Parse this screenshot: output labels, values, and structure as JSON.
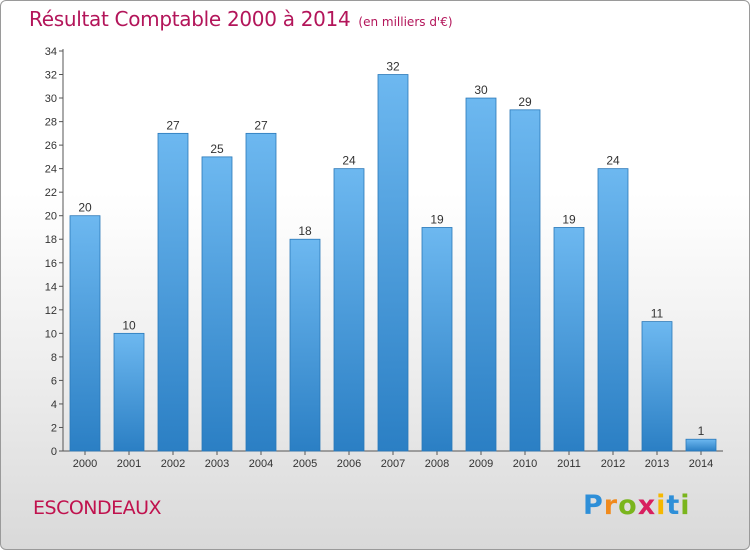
{
  "header": {
    "title": "Résultat Comptable 2000 à 2014",
    "subtitle": "(en milliers d'€)"
  },
  "footer": {
    "commune": "ESCONDEAUX",
    "logo_letters": [
      "P",
      "r",
      "o",
      "x",
      "i",
      "t",
      "i"
    ],
    "logo_colors": [
      "#2e8fd8",
      "#f08a1c",
      "#7ab51d",
      "#d81f5f",
      "#f6b800",
      "#2e8fd8",
      "#7ab51d"
    ]
  },
  "colors": {
    "bar_top": "#6db8f0",
    "bar_bottom": "#2b7fc4",
    "title": "#b3155a"
  },
  "chart_data": {
    "type": "bar",
    "title": "Résultat Comptable 2000 à 2014",
    "subtitle": "(en milliers d'€)",
    "xlabel": "",
    "ylabel": "",
    "categories": [
      "2000",
      "2001",
      "2002",
      "2003",
      "2004",
      "2005",
      "2006",
      "2007",
      "2008",
      "2009",
      "2010",
      "2011",
      "2012",
      "2013",
      "2014"
    ],
    "values": [
      20,
      10,
      27,
      25,
      27,
      18,
      24,
      32,
      19,
      30,
      29,
      19,
      24,
      11,
      1
    ],
    "ylim": [
      0,
      34
    ],
    "yticks": [
      0,
      2,
      4,
      6,
      8,
      10,
      12,
      14,
      16,
      18,
      20,
      22,
      24,
      26,
      28,
      30,
      32,
      34
    ],
    "grid": false,
    "legend": "none"
  }
}
